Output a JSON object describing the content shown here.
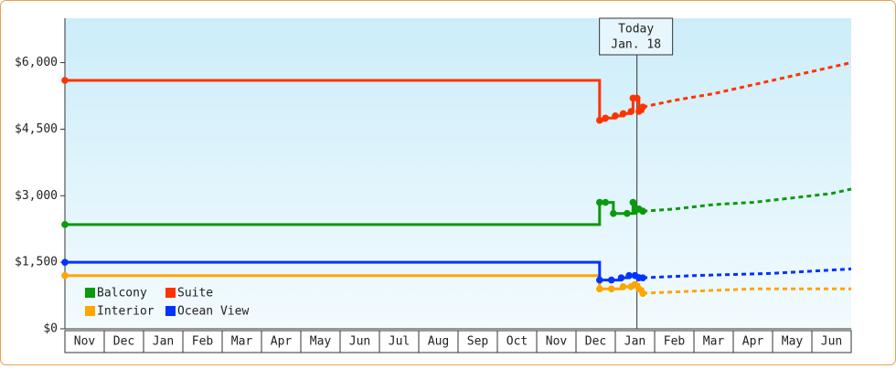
{
  "chart_data": {
    "type": "line",
    "categories": [
      "Nov",
      "Dec",
      "Jan",
      "Feb",
      "Mar",
      "Apr",
      "May",
      "Jun",
      "Jul",
      "Aug",
      "Sep",
      "Oct",
      "Nov",
      "Dec",
      "Jan",
      "Feb",
      "Mar",
      "Apr",
      "May",
      "Jun"
    ],
    "xlim": [
      0,
      20
    ],
    "ylim": [
      0,
      7000
    ],
    "yticks": [
      {
        "value": 0,
        "label": "$0"
      },
      {
        "value": 1500,
        "label": "$1,500"
      },
      {
        "value": 3000,
        "label": "$3,000"
      },
      {
        "value": 4500,
        "label": "$4,500"
      },
      {
        "value": 6000,
        "label": "$6,000"
      }
    ],
    "step": "after",
    "today": {
      "x": 14.55,
      "label": [
        "Today",
        "Jan. 18"
      ]
    },
    "series": [
      {
        "name": "Balcony",
        "color": "#0a9a0a",
        "x": [
          0,
          13.6,
          13.75,
          13.95,
          14.3,
          14.45,
          14.5,
          14.6,
          14.7
        ],
        "values": [
          2350,
          2850,
          2850,
          2600,
          2600,
          2850,
          2650,
          2700,
          2650
        ],
        "forecast_x": [
          14.7,
          15.5,
          16.5,
          17.5,
          18.5,
          19.5,
          20
        ],
        "forecast": [
          2650,
          2700,
          2800,
          2850,
          2950,
          3050,
          3150
        ]
      },
      {
        "name": "Suite",
        "color": "#ff3300",
        "x": [
          0,
          13.6,
          13.75,
          14.0,
          14.2,
          14.4,
          14.45,
          14.55,
          14.6,
          14.7
        ],
        "values": [
          5600,
          4700,
          4750,
          4800,
          4850,
          4900,
          5200,
          5200,
          4900,
          5000
        ],
        "forecast_x": [
          14.7,
          15.5,
          16.5,
          17.5,
          18.5,
          19.5,
          20
        ],
        "forecast": [
          5000,
          5150,
          5300,
          5500,
          5700,
          5900,
          6000
        ]
      },
      {
        "name": "Interior",
        "color": "#ffa500",
        "x": [
          0,
          13.6,
          13.9,
          14.2,
          14.4,
          14.5,
          14.6,
          14.7
        ],
        "values": [
          1200,
          900,
          900,
          950,
          950,
          1000,
          900,
          800
        ],
        "forecast_x": [
          14.7,
          16,
          17.5,
          20
        ],
        "forecast": [
          800,
          850,
          900,
          900
        ]
      },
      {
        "name": "Ocean View",
        "color": "#0033ff",
        "x": [
          0,
          13.6,
          13.9,
          14.15,
          14.35,
          14.5,
          14.6,
          14.7
        ],
        "values": [
          1500,
          1100,
          1100,
          1150,
          1200,
          1200,
          1150,
          1150
        ],
        "forecast_x": [
          14.7,
          16,
          18,
          20
        ],
        "forecast": [
          1150,
          1200,
          1250,
          1350
        ]
      }
    ]
  }
}
